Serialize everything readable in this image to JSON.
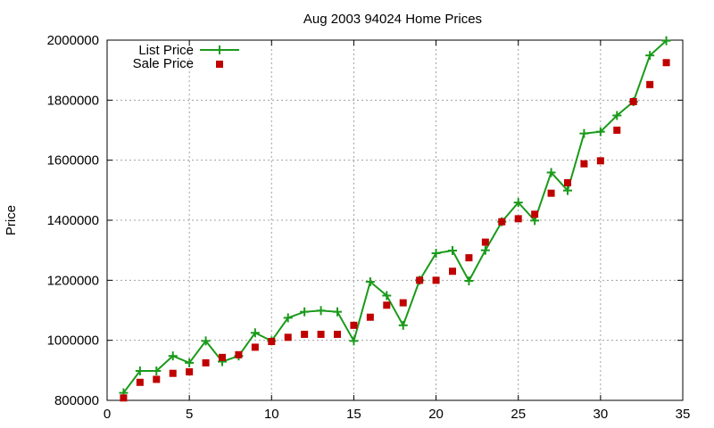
{
  "chart_data": {
    "type": "line",
    "title": "Aug 2003 94024 Home Prices",
    "xlabel": "",
    "ylabel": "Price",
    "xlim": [
      0,
      35
    ],
    "ylim": [
      800000,
      2000000
    ],
    "xticks": [
      0,
      5,
      10,
      15,
      20,
      25,
      30,
      35
    ],
    "yticks": [
      800000,
      1000000,
      1200000,
      1400000,
      1600000,
      1800000,
      2000000
    ],
    "grid": true,
    "legend_position": "top-left",
    "series": [
      {
        "name": "List Price",
        "style": "line+cross",
        "color": "#1a9a1a",
        "x": [
          1,
          2,
          3,
          4,
          5,
          6,
          7,
          8,
          9,
          10,
          11,
          12,
          13,
          14,
          15,
          16,
          17,
          18,
          19,
          20,
          21,
          22,
          23,
          24,
          25,
          26,
          27,
          28,
          29,
          30,
          31,
          32,
          33,
          34
        ],
        "values": [
          825000,
          898000,
          898000,
          948000,
          925000,
          998000,
          929000,
          948000,
          1025000,
          998000,
          1075000,
          1095000,
          1099000,
          1095000,
          998000,
          1195000,
          1149000,
          1050000,
          1200000,
          1290000,
          1299000,
          1198000,
          1300000,
          1395000,
          1459000,
          1399000,
          1559000,
          1499000,
          1689000,
          1695000,
          1749000,
          1795000,
          1949000,
          1998000
        ]
      },
      {
        "name": "Sale Price",
        "style": "square",
        "color": "#c00000",
        "x": [
          1,
          2,
          3,
          4,
          5,
          6,
          7,
          8,
          9,
          10,
          11,
          12,
          13,
          14,
          15,
          16,
          17,
          18,
          19,
          20,
          21,
          22,
          23,
          24,
          25,
          26,
          27,
          28,
          29,
          30,
          31,
          32,
          33,
          34
        ],
        "values": [
          808000,
          860000,
          870000,
          890000,
          895000,
          925000,
          943000,
          952000,
          977000,
          996000,
          1010000,
          1020000,
          1020000,
          1020000,
          1050000,
          1077000,
          1117000,
          1125000,
          1200000,
          1200000,
          1230000,
          1275000,
          1327000,
          1395000,
          1405000,
          1420000,
          1490000,
          1525000,
          1588000,
          1598000,
          1700000,
          1795000,
          1852000,
          1925000
        ]
      }
    ]
  }
}
